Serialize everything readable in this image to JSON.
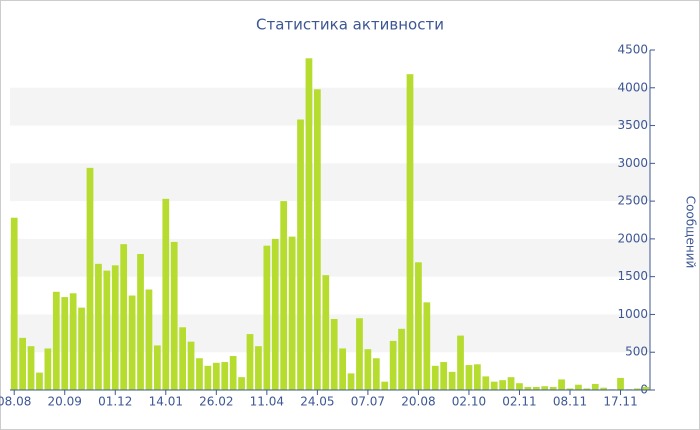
{
  "chart_data": {
    "type": "bar",
    "title": "Статистика активности",
    "y_axis_label": "Сообщений",
    "color": "#b5dc2f",
    "categories": [
      "08.08",
      null,
      null,
      null,
      null,
      null,
      "20.09",
      null,
      null,
      null,
      null,
      null,
      "01.12",
      null,
      null,
      null,
      null,
      null,
      "14.01",
      null,
      null,
      null,
      null,
      null,
      "26.02",
      null,
      null,
      null,
      null,
      null,
      "11.04",
      null,
      null,
      null,
      null,
      null,
      "24.05",
      null,
      null,
      null,
      null,
      null,
      "07.07",
      null,
      null,
      null,
      null,
      null,
      "20.08",
      null,
      null,
      null,
      null,
      null,
      "02.10",
      null,
      null,
      null,
      null,
      null,
      "02.11",
      null,
      null,
      null,
      null,
      null,
      "08.11",
      null,
      null,
      null,
      null,
      null,
      "17.11",
      null,
      null,
      null
    ],
    "values": [
      2280,
      690,
      580,
      230,
      550,
      1300,
      1230,
      1280,
      1090,
      2940,
      1670,
      1580,
      1650,
      1930,
      1250,
      1800,
      1330,
      590,
      2530,
      1960,
      830,
      640,
      420,
      320,
      360,
      370,
      450,
      170,
      740,
      580,
      1910,
      2000,
      2500,
      2030,
      3580,
      4390,
      3980,
      1520,
      940,
      550,
      220,
      950,
      540,
      420,
      110,
      650,
      810,
      4180,
      1690,
      1160,
      320,
      370,
      240,
      720,
      330,
      340,
      180,
      110,
      130,
      170,
      90,
      40,
      40,
      50,
      40,
      140,
      20,
      70,
      20,
      80,
      30,
      10,
      160,
      10,
      20,
      40
    ],
    "ylim": [
      0,
      4500
    ],
    "yticks": [
      0,
      500,
      1000,
      1500,
      2000,
      2500,
      3000,
      3500,
      4000,
      4500
    ],
    "grid": "bands"
  }
}
